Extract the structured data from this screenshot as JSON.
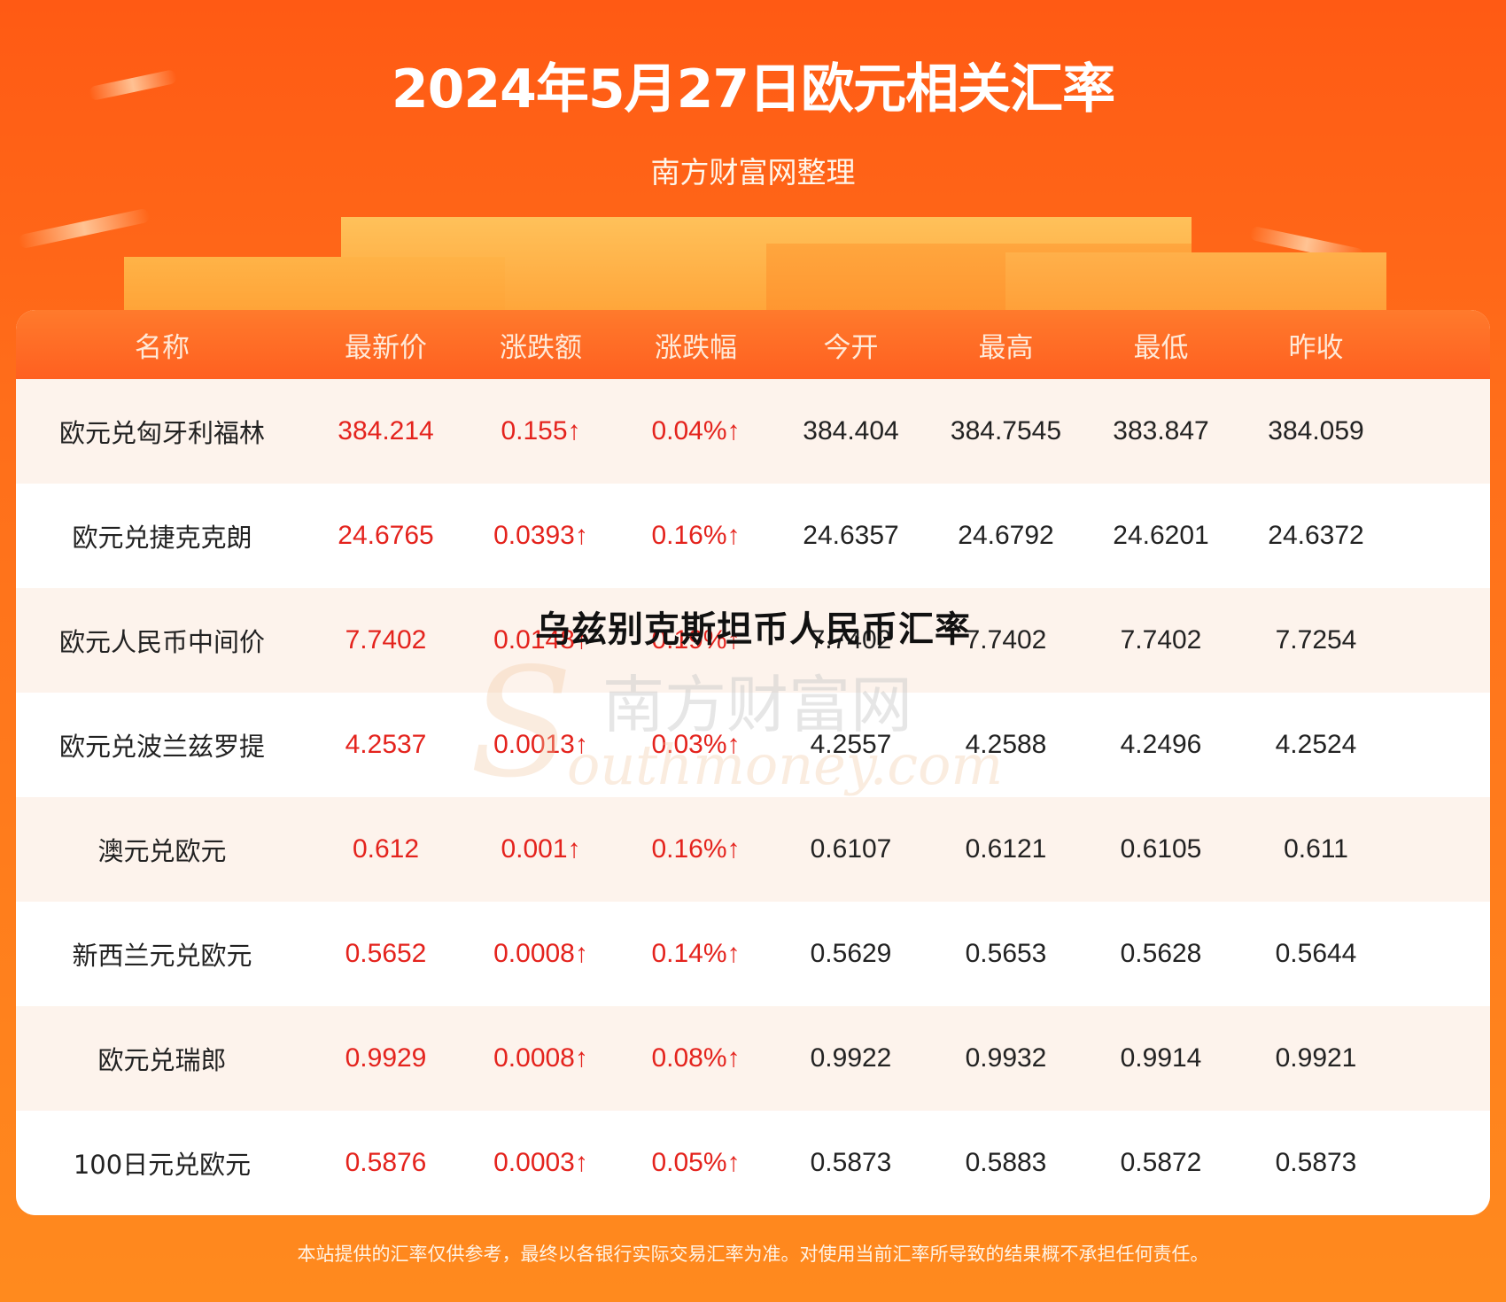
{
  "page": {
    "title": "2024年5月27日欧元相关汇率",
    "subtitle": "南方财富网整理",
    "overlay_heading": "乌兹别克斯坦币人民币汇率",
    "watermark": "南方财富网 southmoney.com",
    "footer": "本站提供的汇率仅供参考，最终以各银行实际交易汇率为准。对使用当前汇率所导致的结果概不承担任何责任。"
  },
  "table": {
    "headers": [
      "名称",
      "最新价",
      "涨跌额",
      "涨跌幅",
      "今开",
      "最高",
      "最低",
      "昨收"
    ],
    "rows": [
      [
        "欧元兑匈牙利福林",
        "384.214",
        "0.155↑",
        "0.04%↑",
        "384.404",
        "384.7545",
        "383.847",
        "384.059"
      ],
      [
        "欧元兑捷克克朗",
        "24.6765",
        "0.0393↑",
        "0.16%↑",
        "24.6357",
        "24.6792",
        "24.6201",
        "24.6372"
      ],
      [
        "欧元人民币中间价",
        "7.7402",
        "0.0148↑",
        "0.19%↑",
        "7.7402",
        "7.7402",
        "7.7402",
        "7.7254"
      ],
      [
        "欧元兑波兰兹罗提",
        "4.2537",
        "0.0013↑",
        "0.03%↑",
        "4.2557",
        "4.2588",
        "4.2496",
        "4.2524"
      ],
      [
        "澳元兑欧元",
        "0.612",
        "0.001↑",
        "0.16%↑",
        "0.6107",
        "0.6121",
        "0.6105",
        "0.611"
      ],
      [
        "新西兰元兑欧元",
        "0.5652",
        "0.0008↑",
        "0.14%↑",
        "0.5629",
        "0.5653",
        "0.5628",
        "0.5644"
      ],
      [
        "欧元兑瑞郎",
        "0.9929",
        "0.0008↑",
        "0.08%↑",
        "0.9922",
        "0.9932",
        "0.9914",
        "0.9921"
      ],
      [
        "100日元兑欧元",
        "0.5876",
        "0.0003↑",
        "0.05%↑",
        "0.5873",
        "0.5883",
        "0.5872",
        "0.5873"
      ]
    ]
  },
  "colors": {
    "background": "#ff6d1a",
    "header_bar": "#ff6a24",
    "up_red": "#e4231d",
    "row_alt": "#fdf3ec"
  }
}
